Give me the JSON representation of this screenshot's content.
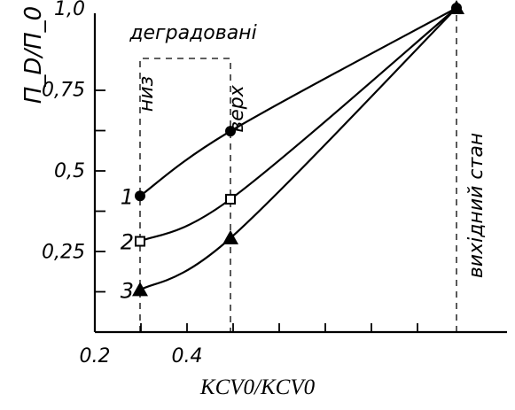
{
  "chart_data": {
    "type": "line",
    "xlabel": "KCV0/KCV0",
    "ylabel": "П_D/П_0",
    "x_ticks": [
      "0.2",
      "0.4"
    ],
    "y_ticks": [
      "0,25",
      "0,5",
      "0,75",
      "1,0"
    ],
    "xlim": [
      0.2,
      1.0
    ],
    "ylim": [
      0,
      1.15
    ],
    "grid": false,
    "series": [
      {
        "name": "1",
        "marker": "circle",
        "x": [
          0.3,
          0.5,
          1.0
        ],
        "y": [
          0.42,
          0.62,
          1.0
        ]
      },
      {
        "name": "2",
        "marker": "square",
        "x": [
          0.3,
          0.5,
          1.0
        ],
        "y": [
          0.28,
          0.41,
          1.0
        ]
      },
      {
        "name": "3",
        "marker": "triangle",
        "x": [
          0.3,
          0.5,
          1.0
        ],
        "y": [
          0.13,
          0.29,
          1.0
        ]
      }
    ],
    "annotations": {
      "degraded": "деградовані",
      "bottom": "низ",
      "top": "верх",
      "initial": "вихідний стан"
    }
  }
}
